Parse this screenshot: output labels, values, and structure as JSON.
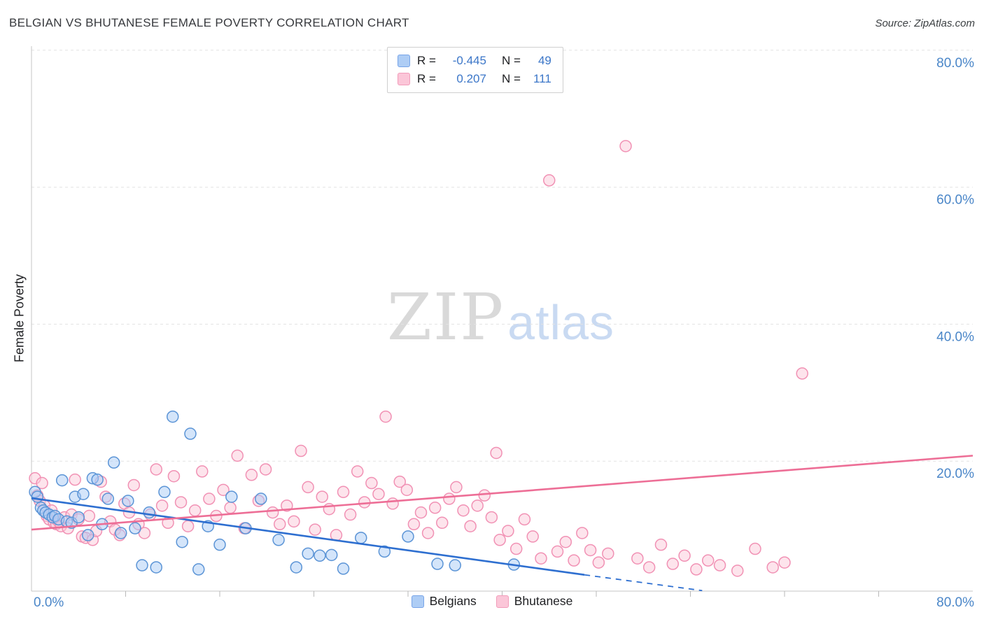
{
  "header": {
    "title": "BELGIAN VS BHUTANESE FEMALE POVERTY CORRELATION CHART",
    "source": "Source: ZipAtlas.com"
  },
  "watermark": {
    "zip": "ZIP",
    "atlas": "atlas"
  },
  "axes": {
    "y_label": "Female Poverty",
    "x_min_label": "0.0%",
    "x_max_label": "80.0%"
  },
  "stats_legend": {
    "rows": [
      {
        "series": "Belgians",
        "r_label": "R =",
        "r_value": "-0.445",
        "n_label": "N =",
        "n_value": "49"
      },
      {
        "series": "Bhutanese",
        "r_label": "R =",
        "r_value": "0.207",
        "n_label": "N =",
        "n_value": "111"
      }
    ]
  },
  "bottom_legend": {
    "items": [
      {
        "label": "Belgians",
        "color": "#aecdf5"
      },
      {
        "label": "Bhutanese",
        "color": "#fbc6d8"
      }
    ]
  },
  "colors": {
    "axis_label_blue": "#4a86c8",
    "belgian_fill": "#a9ccf5",
    "belgian_stroke": "#5b94d6",
    "belgian_trend": "#2e6fd0",
    "bhutanese_fill": "#fbc9da",
    "bhutanese_stroke": "#f191b4",
    "bhutanese_trend": "#ed6e96",
    "gridline": "#e3e3e3"
  },
  "chart_data": {
    "type": "scatter",
    "title": "BELGIAN VS BHUTANESE FEMALE POVERTY CORRELATION CHART",
    "xlabel": "",
    "ylabel": "Female Poverty",
    "xlim": [
      0,
      80
    ],
    "ylim": [
      0,
      82
    ],
    "grid": "horizontal-dashed",
    "legend_position": "top-center and bottom-center",
    "y_gridlines": [
      20,
      40,
      60,
      80
    ],
    "y_tick_labels": [
      "20.0%",
      "40.0%",
      "60.0%",
      "80.0%"
    ],
    "x_tick_labels_shown": [
      "0.0%",
      "80.0%"
    ],
    "series": [
      {
        "name": "Belgians",
        "r": -0.445,
        "n": 49,
        "trend": {
          "x1": 0,
          "y1": 14.6,
          "x2": 47,
          "y2": 3.4,
          "dash_x2": 57,
          "dash_y2": 1.1
        },
        "points": [
          [
            0.3,
            15.5
          ],
          [
            0.5,
            14.8
          ],
          [
            0.8,
            13.2
          ],
          [
            1.0,
            12.8
          ],
          [
            1.2,
            12.5
          ],
          [
            1.5,
            12.2
          ],
          [
            1.8,
            11.8
          ],
          [
            2.0,
            12.0
          ],
          [
            2.3,
            11.5
          ],
          [
            2.6,
            17.2
          ],
          [
            3.0,
            11.2
          ],
          [
            3.4,
            11.0
          ],
          [
            3.7,
            14.8
          ],
          [
            4.0,
            11.8
          ],
          [
            4.4,
            15.2
          ],
          [
            4.8,
            9.2
          ],
          [
            5.2,
            17.5
          ],
          [
            5.6,
            17.3
          ],
          [
            6.0,
            10.8
          ],
          [
            6.5,
            14.5
          ],
          [
            7.0,
            19.8
          ],
          [
            7.6,
            9.5
          ],
          [
            8.2,
            14.2
          ],
          [
            8.8,
            10.2
          ],
          [
            9.4,
            4.8
          ],
          [
            10.0,
            12.5
          ],
          [
            10.6,
            4.5
          ],
          [
            11.3,
            15.5
          ],
          [
            12.0,
            26.5
          ],
          [
            12.8,
            8.2
          ],
          [
            13.5,
            24.0
          ],
          [
            14.2,
            4.2
          ],
          [
            15.0,
            10.5
          ],
          [
            16.0,
            7.8
          ],
          [
            17.0,
            14.8
          ],
          [
            18.2,
            10.2
          ],
          [
            19.5,
            14.5
          ],
          [
            21.0,
            8.5
          ],
          [
            22.5,
            4.5
          ],
          [
            23.5,
            6.5
          ],
          [
            24.5,
            6.2
          ],
          [
            25.5,
            6.3
          ],
          [
            26.5,
            4.3
          ],
          [
            28.0,
            8.8
          ],
          [
            30.0,
            6.8
          ],
          [
            32.0,
            9.0
          ],
          [
            34.5,
            5.0
          ],
          [
            36.0,
            4.8
          ],
          [
            41.0,
            4.9
          ]
        ]
      },
      {
        "name": "Bhutanese",
        "r": 0.207,
        "n": 111,
        "trend": {
          "x1": 0,
          "y1": 10.0,
          "x2": 80,
          "y2": 20.8
        },
        "points": [
          [
            0.3,
            17.5
          ],
          [
            0.5,
            15.0
          ],
          [
            0.7,
            14.2
          ],
          [
            0.9,
            16.8
          ],
          [
            1.1,
            13.5
          ],
          [
            1.3,
            12.0
          ],
          [
            1.5,
            11.5
          ],
          [
            1.7,
            12.8
          ],
          [
            1.9,
            11.0
          ],
          [
            2.1,
            10.8
          ],
          [
            2.3,
            11.2
          ],
          [
            2.5,
            10.5
          ],
          [
            2.8,
            11.8
          ],
          [
            3.1,
            10.2
          ],
          [
            3.4,
            12.2
          ],
          [
            3.7,
            17.3
          ],
          [
            4.0,
            11.5
          ],
          [
            4.3,
            9.0
          ],
          [
            4.6,
            8.8
          ],
          [
            4.9,
            12.0
          ],
          [
            5.2,
            8.5
          ],
          [
            5.5,
            9.8
          ],
          [
            5.9,
            17.0
          ],
          [
            6.3,
            14.8
          ],
          [
            6.7,
            11.2
          ],
          [
            7.1,
            10.0
          ],
          [
            7.5,
            9.2
          ],
          [
            7.9,
            13.8
          ],
          [
            8.3,
            12.5
          ],
          [
            8.7,
            16.5
          ],
          [
            9.1,
            10.8
          ],
          [
            9.6,
            9.5
          ],
          [
            10.1,
            12.2
          ],
          [
            10.6,
            18.8
          ],
          [
            11.1,
            13.5
          ],
          [
            11.6,
            11.0
          ],
          [
            12.1,
            17.8
          ],
          [
            12.7,
            14.0
          ],
          [
            13.3,
            10.5
          ],
          [
            13.9,
            12.8
          ],
          [
            14.5,
            18.5
          ],
          [
            15.1,
            14.5
          ],
          [
            15.7,
            12.0
          ],
          [
            16.3,
            15.8
          ],
          [
            16.9,
            13.2
          ],
          [
            17.5,
            20.8
          ],
          [
            18.1,
            10.2
          ],
          [
            18.7,
            18.0
          ],
          [
            19.3,
            14.2
          ],
          [
            19.9,
            18.8
          ],
          [
            20.5,
            12.5
          ],
          [
            21.1,
            10.8
          ],
          [
            21.7,
            13.5
          ],
          [
            22.3,
            11.2
          ],
          [
            22.9,
            21.5
          ],
          [
            23.5,
            16.2
          ],
          [
            24.1,
            10.0
          ],
          [
            24.7,
            14.8
          ],
          [
            25.3,
            13.0
          ],
          [
            25.9,
            9.2
          ],
          [
            26.5,
            15.5
          ],
          [
            27.1,
            12.2
          ],
          [
            27.7,
            18.5
          ],
          [
            28.3,
            14.0
          ],
          [
            28.9,
            16.8
          ],
          [
            29.5,
            15.2
          ],
          [
            30.1,
            26.5
          ],
          [
            30.7,
            13.8
          ],
          [
            31.3,
            17.0
          ],
          [
            31.9,
            15.8
          ],
          [
            32.5,
            10.8
          ],
          [
            33.1,
            12.5
          ],
          [
            33.7,
            9.5
          ],
          [
            34.3,
            13.2
          ],
          [
            34.9,
            11.0
          ],
          [
            35.5,
            14.5
          ],
          [
            36.1,
            16.2
          ],
          [
            36.7,
            12.8
          ],
          [
            37.3,
            10.5
          ],
          [
            37.9,
            13.5
          ],
          [
            38.5,
            15.0
          ],
          [
            39.1,
            11.8
          ],
          [
            39.5,
            21.2
          ],
          [
            39.8,
            8.5
          ],
          [
            40.5,
            9.8
          ],
          [
            41.2,
            7.2
          ],
          [
            41.9,
            11.5
          ],
          [
            42.6,
            9.0
          ],
          [
            43.3,
            5.8
          ],
          [
            44.0,
            61.0
          ],
          [
            44.7,
            6.8
          ],
          [
            45.4,
            8.2
          ],
          [
            46.1,
            5.5
          ],
          [
            46.8,
            9.5
          ],
          [
            47.5,
            7.0
          ],
          [
            48.2,
            5.2
          ],
          [
            49.0,
            6.5
          ],
          [
            50.5,
            66.0
          ],
          [
            51.5,
            5.8
          ],
          [
            52.5,
            4.5
          ],
          [
            53.5,
            7.8
          ],
          [
            54.5,
            5.0
          ],
          [
            55.5,
            6.2
          ],
          [
            56.5,
            4.2
          ],
          [
            57.5,
            5.5
          ],
          [
            58.5,
            4.8
          ],
          [
            60.0,
            4.0
          ],
          [
            61.5,
            7.2
          ],
          [
            63.0,
            4.5
          ],
          [
            64.0,
            5.2
          ],
          [
            65.5,
            32.8
          ]
        ]
      }
    ]
  }
}
